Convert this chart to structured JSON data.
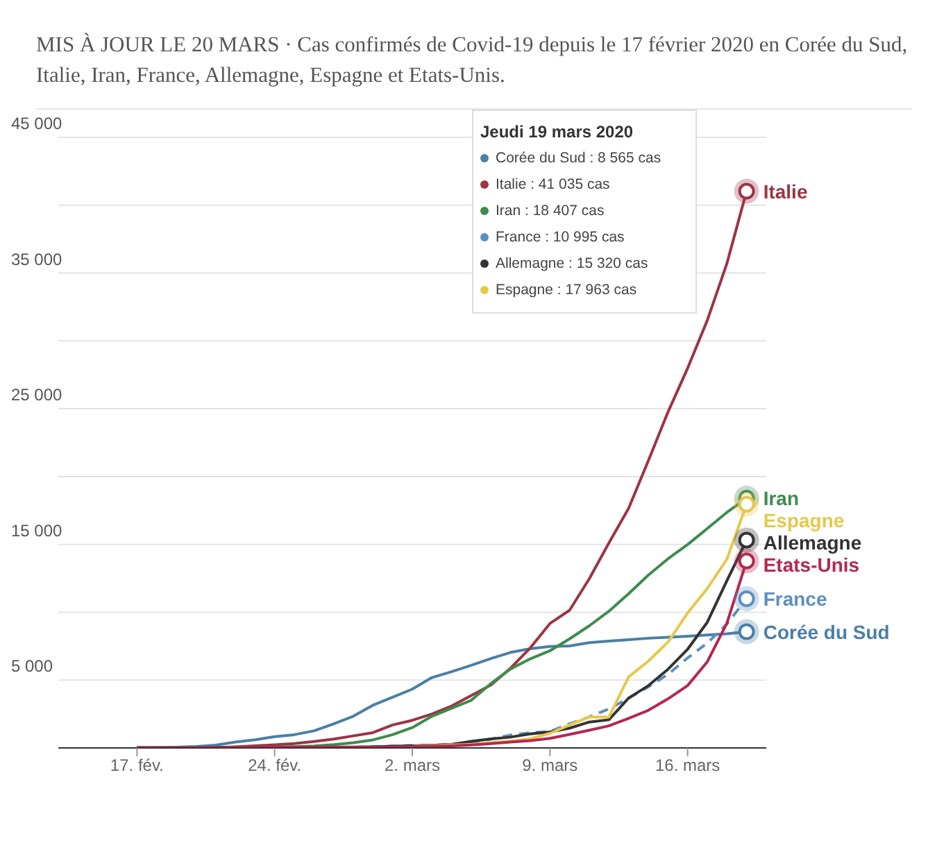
{
  "chart_data": {
    "type": "line",
    "title": "MIS À JOUR LE 20 MARS · Cas confirmés de Covid-19 depuis le 17 février 2020 en Corée du Sud, Italie, Iran, France, Allemagne, Espagne et Etats-Unis.",
    "x": [
      "2020-02-17",
      "2020-02-18",
      "2020-02-19",
      "2020-02-20",
      "2020-02-21",
      "2020-02-22",
      "2020-02-23",
      "2020-02-24",
      "2020-02-25",
      "2020-02-26",
      "2020-02-27",
      "2020-02-28",
      "2020-02-29",
      "2020-03-01",
      "2020-03-02",
      "2020-03-03",
      "2020-03-04",
      "2020-03-05",
      "2020-03-06",
      "2020-03-07",
      "2020-03-08",
      "2020-03-09",
      "2020-03-10",
      "2020-03-11",
      "2020-03-12",
      "2020-03-13",
      "2020-03-14",
      "2020-03-15",
      "2020-03-16",
      "2020-03-17",
      "2020-03-18",
      "2020-03-19"
    ],
    "series": [
      {
        "name": "Corée du Sud",
        "color": "#4a7fa6",
        "values": [
          30,
          31,
          51,
          104,
          204,
          433,
          602,
          833,
          977,
          1261,
          1766,
          2337,
          3150,
          3736,
          4335,
          5186,
          5621,
          6088,
          6593,
          7041,
          7314,
          7478,
          7513,
          7755,
          7869,
          7979,
          8086,
          8162,
          8236,
          8320,
          8413,
          8565
        ]
      },
      {
        "name": "Italie",
        "color": "#9c3445",
        "values": [
          3,
          3,
          3,
          3,
          20,
          79,
          157,
          229,
          323,
          470,
          655,
          889,
          1128,
          1694,
          2036,
          2502,
          3089,
          3858,
          4636,
          5883,
          7375,
          9172,
          10149,
          12462,
          15113,
          17660,
          21157,
          24747,
          27980,
          31506,
          35713,
          41035
        ]
      },
      {
        "name": "Iran",
        "color": "#3d8c4c",
        "values": [
          null,
          null,
          null,
          null,
          null,
          null,
          43,
          61,
          95,
          139,
          245,
          388,
          593,
          978,
          1501,
          2336,
          2922,
          3513,
          4747,
          5823,
          6566,
          7161,
          8042,
          9000,
          10075,
          11364,
          12729,
          13938,
          14991,
          16169,
          17361,
          18407
        ]
      },
      {
        "name": "France",
        "color": "#5d8fbd",
        "line_style": "dashed",
        "values": [
          12,
          12,
          12,
          12,
          12,
          12,
          12,
          12,
          14,
          18,
          38,
          57,
          100,
          130,
          191,
          204,
          285,
          377,
          653,
          949,
          1126,
          1209,
          1784,
          2281,
          2876,
          3661,
          4499,
          5423,
          6633,
          7730,
          9134,
          10995
        ]
      },
      {
        "name": "Allemagne",
        "color": "#333333",
        "values": [
          16,
          16,
          16,
          16,
          16,
          16,
          16,
          16,
          17,
          27,
          46,
          48,
          79,
          130,
          159,
          196,
          262,
          482,
          670,
          799,
          1040,
          1176,
          1457,
          1908,
          2078,
          3675,
          4585,
          5795,
          7272,
          9257,
          12327,
          15320
        ]
      },
      {
        "name": "Espagne",
        "color": "#e6c84c",
        "values": [
          null,
          null,
          null,
          null,
          null,
          null,
          null,
          null,
          null,
          null,
          null,
          null,
          null,
          null,
          120,
          165,
          222,
          259,
          400,
          500,
          673,
          1073,
          1695,
          2277,
          2277,
          5232,
          6391,
          7798,
          9942,
          11748,
          13910,
          17963
        ]
      },
      {
        "name": "Etats-Unis",
        "color": "#b52750",
        "values": [
          15,
          15,
          15,
          15,
          35,
          35,
          35,
          53,
          53,
          59,
          60,
          62,
          68,
          75,
          100,
          124,
          158,
          221,
          319,
          435,
          541,
          704,
          994,
          1301,
          1630,
          2183,
          2770,
          3613,
          4596,
          6344,
          9197,
          13779
        ]
      }
    ],
    "xlim": [
      "2020-02-13",
      "2020-03-20"
    ],
    "xticks": [
      {
        "value": "2020-02-17",
        "label": "17. fév."
      },
      {
        "value": "2020-02-24",
        "label": "24. fév."
      },
      {
        "value": "2020-03-02",
        "label": "2. mars"
      },
      {
        "value": "2020-03-09",
        "label": "9. mars"
      },
      {
        "value": "2020-03-16",
        "label": "16. mars"
      }
    ],
    "ylim": [
      0,
      45000
    ],
    "yticks": [
      {
        "value": 0,
        "label": null
      },
      {
        "value": 5000,
        "label": "5 000"
      },
      {
        "value": 10000,
        "label": null
      },
      {
        "value": 15000,
        "label": "15 000"
      },
      {
        "value": 20000,
        "label": null
      },
      {
        "value": 25000,
        "label": "25 000"
      },
      {
        "value": 30000,
        "label": null
      },
      {
        "value": 35000,
        "label": "35 000"
      },
      {
        "value": 40000,
        "label": null
      },
      {
        "value": 45000,
        "label": "45 000"
      }
    ],
    "grid": "y",
    "legend": false,
    "line_style": "solid",
    "annotations": [
      "Jeudi 19 mars 2020",
      "Corée du Sud : 8 565 cas",
      "Italie : 41 035 cas",
      "Iran : 18 407 cas",
      "France : 10 995 cas",
      "Allemagne : 15 320 cas",
      "Espagne : 17 963 cas"
    ]
  }
}
